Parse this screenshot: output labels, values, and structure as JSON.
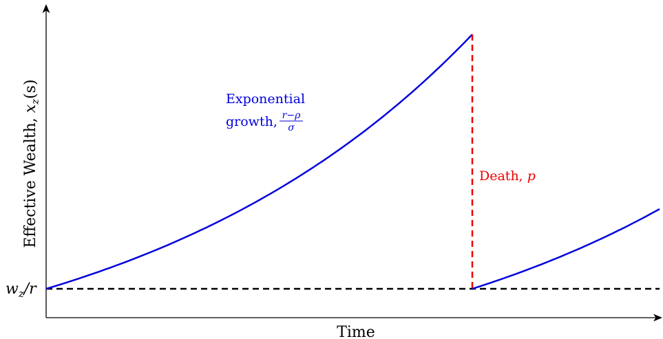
{
  "diagram": {
    "y_axis_label_text": "Effective Wealth, ",
    "y_axis_label_math": "x",
    "y_axis_label_sub": "z",
    "y_axis_label_arg": "(s)",
    "x_axis_label": "Time",
    "baseline_label_w": "w",
    "baseline_label_sub": "z",
    "baseline_label_rest": "/r",
    "growth_label_line1": "Exponential",
    "growth_label_line2": "growth,",
    "growth_frac_num": "r−ρ",
    "growth_frac_den": "σ",
    "death_label_text": "Death, ",
    "death_label_math": "p"
  },
  "colors": {
    "axis": "#000000",
    "baseline": "#000000",
    "growth_curve": "#0000dd",
    "death_line": "#ee0000",
    "growth_label": "#0000dd",
    "death_label": "#ee0000"
  }
}
